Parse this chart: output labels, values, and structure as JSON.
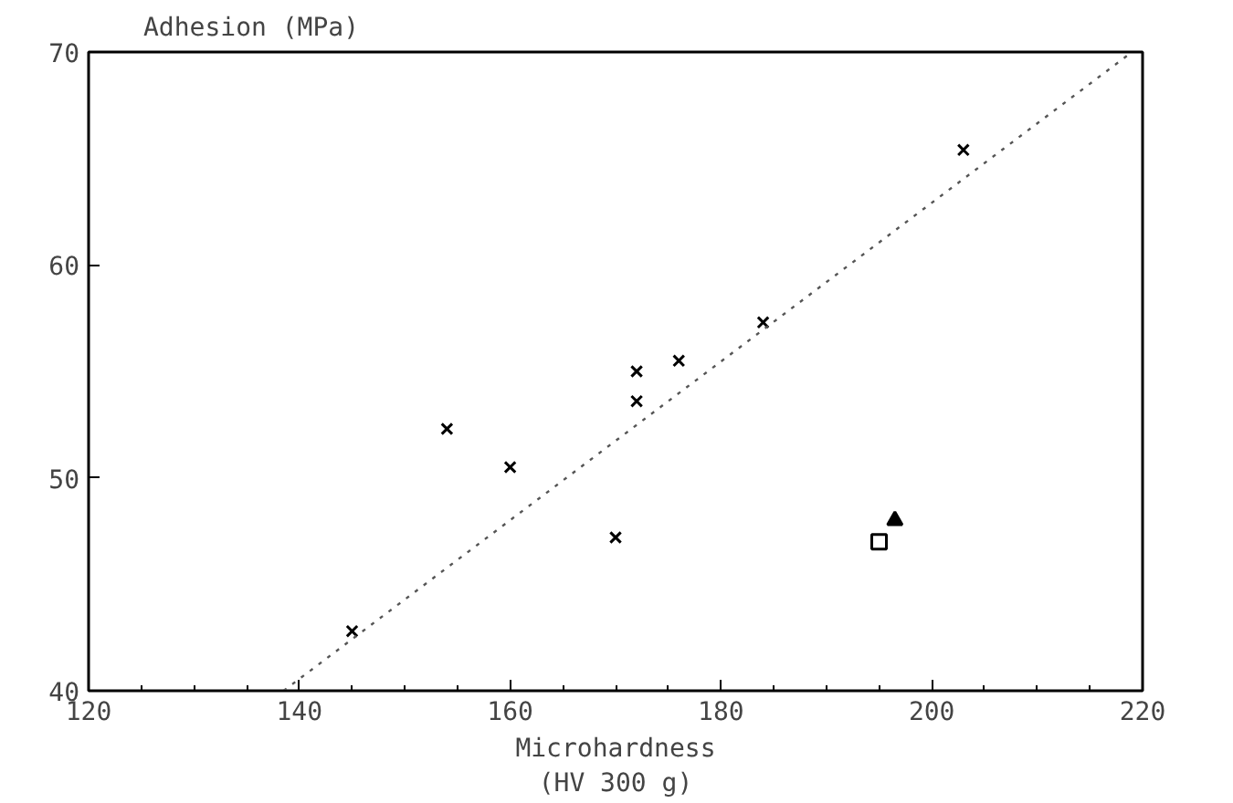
{
  "chart_data": {
    "type": "scatter",
    "xlabel": "Microhardness\n(HV 300 g)",
    "ylabel": "Adhesion (MPa)",
    "xlim": [
      120,
      220
    ],
    "xticks": [
      120,
      140,
      160,
      180,
      200,
      220
    ],
    "ylim": [
      40,
      70
    ],
    "yticks": [
      40,
      50,
      60,
      70
    ],
    "grid": false,
    "series": [
      {
        "marker": "cross",
        "color": "#000000",
        "x": [
          145,
          154,
          160,
          170,
          172,
          172,
          176,
          184,
          203
        ],
        "values": [
          42.8,
          52.3,
          50.5,
          47.2,
          55.0,
          53.6,
          55.5,
          57.3,
          65.4
        ]
      },
      {
        "marker": "square",
        "color": "#000000",
        "x": [
          195
        ],
        "values": [
          47.0
        ]
      },
      {
        "marker": "triangle",
        "color": "#000000",
        "x": [
          196.5
        ],
        "values": [
          48.0
        ]
      },
      {
        "type": "line",
        "line_style": "dotted",
        "color": "#555555",
        "x": [
          138.5,
          219
        ],
        "values": [
          40,
          70
        ]
      }
    ]
  }
}
